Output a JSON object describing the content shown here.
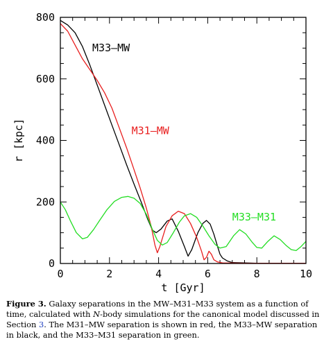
{
  "chart_data": {
    "type": "line",
    "xlabel": "t [Gyr]",
    "ylabel": "r [kpc]",
    "xlim": [
      0,
      10
    ],
    "ylim": [
      0,
      800
    ],
    "x_ticks": [
      "0",
      "2",
      "4",
      "6",
      "8",
      "10"
    ],
    "y_ticks": [
      "0",
      "200",
      "400",
      "600",
      "800"
    ],
    "grid": false,
    "series": [
      {
        "name": "M33–MW",
        "color": "#000000",
        "points": [
          [
            0,
            790
          ],
          [
            0.3,
            775
          ],
          [
            0.6,
            750
          ],
          [
            0.9,
            705
          ],
          [
            1.2,
            645
          ],
          [
            1.5,
            580
          ],
          [
            1.8,
            515
          ],
          [
            2.1,
            450
          ],
          [
            2.4,
            385
          ],
          [
            2.7,
            320
          ],
          [
            3.0,
            258
          ],
          [
            3.3,
            198
          ],
          [
            3.55,
            145
          ],
          [
            3.75,
            108
          ],
          [
            3.9,
            100
          ],
          [
            4.1,
            112
          ],
          [
            4.35,
            138
          ],
          [
            4.55,
            145
          ],
          [
            4.8,
            105
          ],
          [
            5.05,
            55
          ],
          [
            5.2,
            24
          ],
          [
            5.35,
            45
          ],
          [
            5.6,
            100
          ],
          [
            5.8,
            130
          ],
          [
            5.95,
            140
          ],
          [
            6.1,
            128
          ],
          [
            6.25,
            95
          ],
          [
            6.4,
            55
          ],
          [
            6.5,
            30
          ],
          [
            6.6,
            18
          ],
          [
            6.8,
            8
          ],
          [
            7.0,
            3
          ],
          [
            8.0,
            1
          ],
          [
            10.0,
            1
          ]
        ]
      },
      {
        "name": "M31–MW",
        "color": "#e81e1e",
        "points": [
          [
            0,
            780
          ],
          [
            0.3,
            755
          ],
          [
            0.6,
            710
          ],
          [
            0.9,
            665
          ],
          [
            1.2,
            630
          ],
          [
            1.5,
            595
          ],
          [
            1.8,
            555
          ],
          [
            2.1,
            505
          ],
          [
            2.4,
            440
          ],
          [
            2.7,
            375
          ],
          [
            3.0,
            305
          ],
          [
            3.25,
            245
          ],
          [
            3.5,
            180
          ],
          [
            3.7,
            120
          ],
          [
            3.85,
            60
          ],
          [
            3.95,
            35
          ],
          [
            4.05,
            55
          ],
          [
            4.3,
            120
          ],
          [
            4.55,
            155
          ],
          [
            4.8,
            170
          ],
          [
            5.05,
            162
          ],
          [
            5.3,
            130
          ],
          [
            5.55,
            85
          ],
          [
            5.75,
            40
          ],
          [
            5.85,
            12
          ],
          [
            5.95,
            20
          ],
          [
            6.05,
            40
          ],
          [
            6.15,
            30
          ],
          [
            6.25,
            12
          ],
          [
            6.4,
            5
          ],
          [
            6.6,
            2
          ],
          [
            7.5,
            1
          ],
          [
            10.0,
            1
          ]
        ]
      },
      {
        "name": "M33–M31",
        "color": "#22dd22",
        "points": [
          [
            0,
            200
          ],
          [
            0.2,
            175
          ],
          [
            0.4,
            140
          ],
          [
            0.65,
            100
          ],
          [
            0.9,
            80
          ],
          [
            1.1,
            85
          ],
          [
            1.35,
            110
          ],
          [
            1.6,
            140
          ],
          [
            1.9,
            175
          ],
          [
            2.2,
            202
          ],
          [
            2.5,
            215
          ],
          [
            2.75,
            218
          ],
          [
            3.0,
            212
          ],
          [
            3.25,
            195
          ],
          [
            3.5,
            160
          ],
          [
            3.75,
            110
          ],
          [
            3.95,
            75
          ],
          [
            4.15,
            60
          ],
          [
            4.35,
            68
          ],
          [
            4.6,
            100
          ],
          [
            4.85,
            135
          ],
          [
            5.05,
            155
          ],
          [
            5.3,
            162
          ],
          [
            5.55,
            150
          ],
          [
            5.8,
            122
          ],
          [
            6.05,
            90
          ],
          [
            6.3,
            62
          ],
          [
            6.5,
            50
          ],
          [
            6.75,
            55
          ],
          [
            7.05,
            90
          ],
          [
            7.3,
            110
          ],
          [
            7.55,
            96
          ],
          [
            7.8,
            70
          ],
          [
            8.0,
            52
          ],
          [
            8.2,
            50
          ],
          [
            8.45,
            72
          ],
          [
            8.7,
            90
          ],
          [
            8.95,
            78
          ],
          [
            9.2,
            58
          ],
          [
            9.4,
            45
          ],
          [
            9.6,
            42
          ],
          [
            9.8,
            55
          ],
          [
            10.0,
            72
          ]
        ]
      }
    ],
    "annotations": [
      {
        "text": "M33–MW",
        "x": 1.3,
        "y": 690,
        "color": "#000000"
      },
      {
        "text": "M31–MW",
        "x": 2.9,
        "y": 420,
        "color": "#e81e1e"
      },
      {
        "text": "M33–M31",
        "x": 7.0,
        "y": 140,
        "color": "#22dd22"
      }
    ]
  },
  "caption": {
    "lead": "Figure 3.",
    "part1": " Galaxy separations in the MW–M31–M33 system as a function of time, calculated with ",
    "italic": "N",
    "part2": "-body simulations for the canonical model discussed in Section ",
    "ref": "3",
    "part3": ". The M31–MW separation is shown in red, the M33–MW separation in black, and the M33–M31 separation in green."
  }
}
